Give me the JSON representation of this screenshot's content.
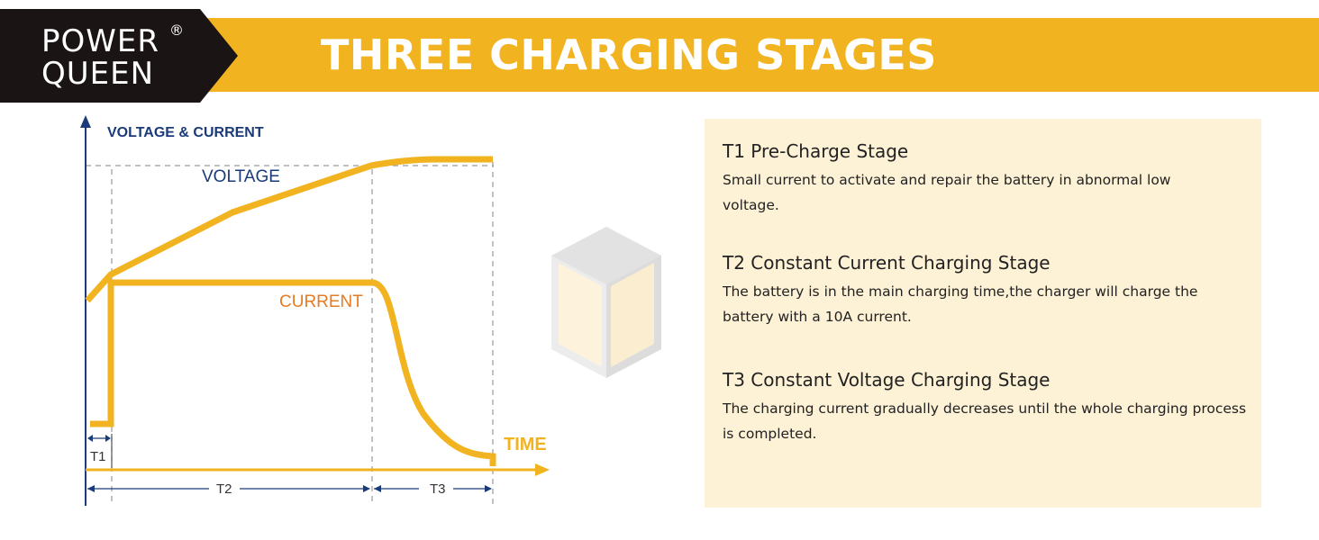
{
  "brand": {
    "line1": "POWER",
    "line2": "QUEEN",
    "registered": "®"
  },
  "banner": {
    "title": "THREE CHARGING STAGES"
  },
  "diagram": {
    "y_axis_label": "VOLTAGE & CURRENT",
    "x_axis_label": "TIME",
    "voltage_label": "VOLTAGE",
    "current_label": "CURRENT",
    "segments": [
      "T1",
      "T2",
      "T3"
    ]
  },
  "stages": [
    {
      "title": "T1 Pre-Charge Stage",
      "description": "Small current to activate and repair the battery in abnormal low voltage."
    },
    {
      "title": "T2 Constant Current Charging Stage",
      "description": "The battery is in the main charging time,the charger will charge the battery with a 10A current."
    },
    {
      "title": "T3 Constant Voltage Charging Stage",
      "description": "The charging current gradually decreases until the whole charging process is completed."
    }
  ],
  "colors": {
    "brand_yellow": "#f2b321",
    "logo_dark": "#1a1414",
    "axis_blue": "#1a3b7a",
    "current_orange": "#e77b22",
    "panel_bg": "#fdf1d6"
  },
  "icons": [
    "battery-cube-icon",
    "arrow-up-icon",
    "arrow-right-icon"
  ]
}
